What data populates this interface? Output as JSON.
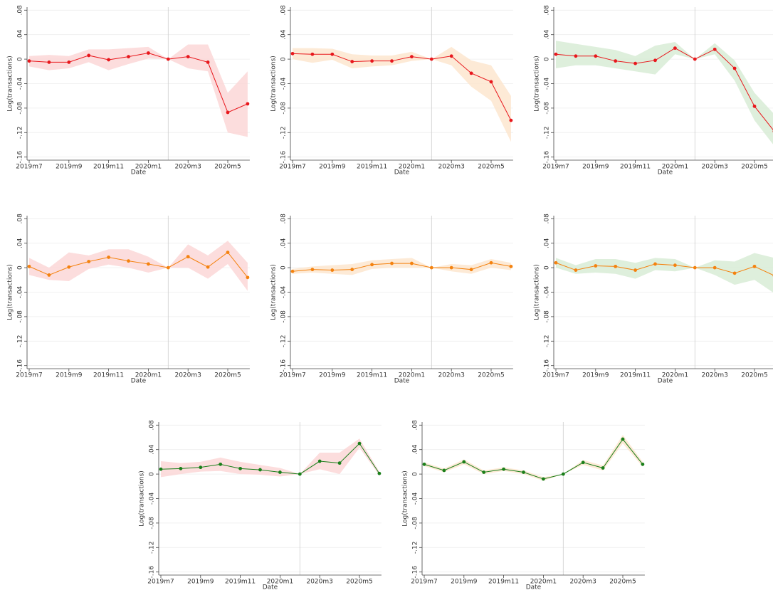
{
  "chart_data": [
    {
      "type": "line",
      "categories": [
        "2019m7",
        null,
        "2019m9",
        null,
        "2019m11",
        null,
        "2020m1",
        null,
        "2020m3",
        null,
        "2020m5",
        null
      ],
      "xlabel": "Date",
      "ylabel": "Log(transactions)",
      "ylim": [
        -0.165,
        0.085
      ],
      "yticks": [
        {
          "value": -0.16,
          "label": "-.16"
        },
        {
          "value": -0.12,
          "label": "-.12"
        },
        {
          "value": -0.08,
          "label": "-.08"
        },
        {
          "value": -0.04,
          "label": "-.04"
        },
        0,
        {
          "value": 0.04,
          "label": ".04"
        },
        {
          "value": 0.08,
          "label": ".08"
        }
      ],
      "grid": true,
      "xline": 7,
      "series": [
        {
          "color": "#e8171c",
          "band_color": "#fbd5d5",
          "values": [
            -0.003,
            -0.005,
            -0.005,
            0.006,
            -0.001,
            0.004,
            0.01,
            0,
            0.004,
            -0.005,
            -0.087,
            -0.073
          ],
          "lower": [
            -0.012,
            -0.018,
            -0.015,
            -0.005,
            -0.018,
            -0.008,
            0.001,
            0,
            -0.015,
            -0.02,
            -0.12,
            -0.127
          ],
          "upper": [
            0.005,
            0.007,
            0.005,
            0.016,
            0.016,
            0.018,
            0.02,
            0,
            0.024,
            0.024,
            -0.055,
            -0.02
          ]
        }
      ]
    },
    {
      "type": "line",
      "categories": [
        "2019m7",
        null,
        "2019m9",
        null,
        "2019m11",
        null,
        "2020m1",
        null,
        "2020m3",
        null,
        "2020m5",
        null
      ],
      "xlabel": "Date",
      "ylabel": "Log(transactions)",
      "ylim": [
        -0.165,
        0.085
      ],
      "yticks": [
        {
          "value": -0.16,
          "label": "-.16"
        },
        {
          "value": -0.12,
          "label": "-.12"
        },
        {
          "value": -0.08,
          "label": "-.08"
        },
        {
          "value": -0.04,
          "label": "-.04"
        },
        0,
        {
          "value": 0.04,
          "label": ".04"
        },
        {
          "value": 0.08,
          "label": ".08"
        }
      ],
      "grid": true,
      "xline": 7,
      "series": [
        {
          "color": "#e8171c",
          "band_color": "#fde5cc",
          "values": [
            0.009,
            0.008,
            0.008,
            -0.004,
            -0.003,
            -0.003,
            0.004,
            0,
            0.005,
            -0.023,
            -0.037,
            -0.1
          ],
          "lower": [
            0.0,
            -0.006,
            -0.001,
            -0.015,
            -0.012,
            -0.01,
            -0.003,
            0,
            -0.01,
            -0.045,
            -0.068,
            -0.135
          ],
          "upper": [
            0.018,
            0.018,
            0.017,
            0.008,
            0.006,
            0.006,
            0.012,
            0,
            0.02,
            -0.002,
            -0.01,
            -0.06
          ]
        }
      ]
    },
    {
      "type": "line",
      "categories": [
        "2019m7",
        null,
        "2019m9",
        null,
        "2019m11",
        null,
        "2020m1",
        null,
        "2020m3",
        null,
        "2020m5",
        null
      ],
      "xlabel": "Date",
      "ylabel": "Log(transactions)",
      "ylim": [
        -0.165,
        0.085
      ],
      "yticks": [
        {
          "value": -0.16,
          "label": "-.16"
        },
        {
          "value": -0.12,
          "label": "-.12"
        },
        {
          "value": -0.08,
          "label": "-.08"
        },
        {
          "value": -0.04,
          "label": "-.04"
        },
        0,
        {
          "value": 0.04,
          "label": ".04"
        },
        {
          "value": 0.08,
          "label": ".08"
        }
      ],
      "grid": true,
      "xline": 7,
      "series": [
        {
          "color": "#e8171c",
          "band_color": "#d6ebd3",
          "values": [
            0.008,
            0.005,
            0.005,
            -0.003,
            -0.007,
            -0.002,
            0.018,
            0,
            0.016,
            -0.015,
            -0.077,
            -0.118
          ],
          "lower": [
            -0.015,
            -0.01,
            -0.01,
            -0.015,
            -0.02,
            -0.025,
            0.008,
            0,
            0.008,
            -0.035,
            -0.1,
            -0.142
          ],
          "upper": [
            0.03,
            0.025,
            0.02,
            0.015,
            0.005,
            0.022,
            0.028,
            0,
            0.026,
            -0.002,
            -0.055,
            -0.09
          ]
        }
      ]
    },
    {
      "type": "line",
      "categories": [
        "2019m7",
        null,
        "2019m9",
        null,
        "2019m11",
        null,
        "2020m1",
        null,
        "2020m3",
        null,
        "2020m5",
        null
      ],
      "xlabel": "Date",
      "ylabel": "Log(transactions)",
      "ylim": [
        -0.165,
        0.085
      ],
      "yticks": [
        {
          "value": -0.16,
          "label": "-.16"
        },
        {
          "value": -0.12,
          "label": "-.12"
        },
        {
          "value": -0.08,
          "label": "-.08"
        },
        {
          "value": -0.04,
          "label": "-.04"
        },
        0,
        {
          "value": 0.04,
          "label": ".04"
        },
        {
          "value": 0.08,
          "label": ".08"
        }
      ],
      "grid": true,
      "xline": 7,
      "series": [
        {
          "color": "#f4820f",
          "band_color": "#fbd5d5",
          "values": [
            0.002,
            -0.012,
            0.001,
            0.01,
            0.017,
            0.011,
            0.006,
            0,
            0.018,
            0.001,
            0.025,
            -0.016
          ],
          "lower": [
            -0.012,
            -0.02,
            -0.022,
            -0.002,
            0.005,
            0.0,
            -0.008,
            0,
            0.0,
            -0.018,
            0.006,
            -0.038
          ],
          "upper": [
            0.016,
            0.0,
            0.025,
            0.02,
            0.03,
            0.03,
            0.018,
            0,
            0.038,
            0.02,
            0.044,
            0.008
          ]
        }
      ]
    },
    {
      "type": "line",
      "categories": [
        "2019m7",
        null,
        "2019m9",
        null,
        "2019m11",
        null,
        "2020m1",
        null,
        "2020m3",
        null,
        "2020m5",
        null
      ],
      "xlabel": "Date",
      "ylabel": "Log(transactions)",
      "ylim": [
        -0.165,
        0.085
      ],
      "yticks": [
        {
          "value": -0.16,
          "label": "-.16"
        },
        {
          "value": -0.12,
          "label": "-.12"
        },
        {
          "value": -0.08,
          "label": "-.08"
        },
        {
          "value": -0.04,
          "label": "-.04"
        },
        0,
        {
          "value": 0.04,
          "label": ".04"
        },
        {
          "value": 0.08,
          "label": ".08"
        }
      ],
      "grid": true,
      "xline": 7,
      "series": [
        {
          "color": "#f4820f",
          "band_color": "#fde5cc",
          "values": [
            -0.006,
            -0.003,
            -0.004,
            -0.003,
            0.005,
            0.007,
            0.007,
            0,
            0.0,
            -0.003,
            0.008,
            0.002
          ],
          "lower": [
            -0.01,
            -0.008,
            -0.01,
            -0.012,
            -0.002,
            0.0,
            0.0,
            0,
            -0.006,
            -0.01,
            0.0,
            -0.004
          ],
          "upper": [
            -0.002,
            0.002,
            0.004,
            0.006,
            0.012,
            0.014,
            0.016,
            0,
            0.006,
            0.004,
            0.014,
            0.008
          ]
        }
      ]
    },
    {
      "type": "line",
      "categories": [
        "2019m7",
        null,
        "2019m9",
        null,
        "2019m11",
        null,
        "2020m1",
        null,
        "2020m3",
        null,
        "2020m5",
        null
      ],
      "xlabel": "Date",
      "ylabel": "Log(transactions)",
      "ylim": [
        -0.165,
        0.085
      ],
      "yticks": [
        {
          "value": -0.16,
          "label": "-.16"
        },
        {
          "value": -0.12,
          "label": "-.12"
        },
        {
          "value": -0.08,
          "label": "-.08"
        },
        {
          "value": -0.04,
          "label": "-.04"
        },
        0,
        {
          "value": 0.04,
          "label": ".04"
        },
        {
          "value": 0.08,
          "label": ".08"
        }
      ],
      "grid": true,
      "xline": 7,
      "series": [
        {
          "color": "#f4820f",
          "band_color": "#d6ebd3",
          "values": [
            0.008,
            -0.004,
            0.003,
            0.002,
            -0.004,
            0.006,
            0.004,
            0,
            0.0,
            -0.009,
            0.002,
            -0.013
          ],
          "lower": [
            0.0,
            -0.01,
            -0.008,
            -0.01,
            -0.018,
            -0.004,
            -0.006,
            0,
            -0.012,
            -0.028,
            -0.02,
            -0.042
          ],
          "upper": [
            0.016,
            0.004,
            0.014,
            0.014,
            0.008,
            0.016,
            0.014,
            0,
            0.012,
            0.01,
            0.024,
            0.016
          ]
        }
      ]
    },
    {
      "type": "line",
      "categories": [
        "2019m7",
        null,
        "2019m9",
        null,
        "2019m11",
        null,
        "2020m1",
        null,
        "2020m3",
        null,
        "2020m5",
        null
      ],
      "xlabel": "Date",
      "ylabel": "Log(transactions)",
      "ylim": [
        -0.165,
        0.085
      ],
      "yticks": [
        {
          "value": -0.16,
          "label": "-.16"
        },
        {
          "value": -0.12,
          "label": "-.12"
        },
        {
          "value": -0.08,
          "label": "-.08"
        },
        {
          "value": -0.04,
          "label": "-.04"
        },
        0,
        {
          "value": 0.04,
          "label": ".04"
        },
        {
          "value": 0.08,
          "label": ".08"
        }
      ],
      "grid": true,
      "xline": 7,
      "series": [
        {
          "color": "#1a7f1a",
          "band_color": "#fbd5d5",
          "values": [
            0.008,
            0.009,
            0.011,
            0.016,
            0.009,
            0.007,
            0.003,
            0,
            0.021,
            0.018,
            0.05,
            0.001
          ],
          "lower": [
            -0.005,
            0.0,
            0.004,
            0.005,
            0.0,
            -0.001,
            -0.004,
            0,
            0.008,
            0.0,
            0.043,
            -0.002
          ],
          "upper": [
            0.021,
            0.018,
            0.02,
            0.027,
            0.02,
            0.015,
            0.01,
            0,
            0.035,
            0.035,
            0.058,
            0.004
          ]
        }
      ]
    },
    {
      "type": "line",
      "categories": [
        "2019m7",
        null,
        "2019m9",
        null,
        "2019m11",
        null,
        "2020m1",
        null,
        "2020m3",
        null,
        "2020m5",
        null
      ],
      "xlabel": "Date",
      "ylabel": "Log(transactions)",
      "ylim": [
        -0.165,
        0.085
      ],
      "yticks": [
        {
          "value": -0.16,
          "label": "-.16"
        },
        {
          "value": -0.12,
          "label": "-.12"
        },
        {
          "value": -0.08,
          "label": "-.08"
        },
        {
          "value": -0.04,
          "label": "-.04"
        },
        0,
        {
          "value": 0.04,
          "label": ".04"
        },
        {
          "value": 0.08,
          "label": ".08"
        }
      ],
      "grid": true,
      "xline": 7,
      "series": [
        {
          "color": "#1a7f1a",
          "band_color": "#fde5cc",
          "values": [
            0.016,
            0.006,
            0.02,
            0.003,
            0.008,
            0.003,
            -0.008,
            0,
            0.019,
            0.01,
            0.057,
            0.016
          ],
          "lower": [
            0.013,
            0.003,
            0.016,
            0.0,
            0.005,
            0.0,
            -0.011,
            0,
            0.015,
            0.006,
            0.05,
            0.012
          ],
          "upper": [
            0.019,
            0.009,
            0.024,
            0.006,
            0.011,
            0.006,
            -0.005,
            0,
            0.023,
            0.014,
            0.064,
            0.02
          ]
        }
      ]
    }
  ]
}
